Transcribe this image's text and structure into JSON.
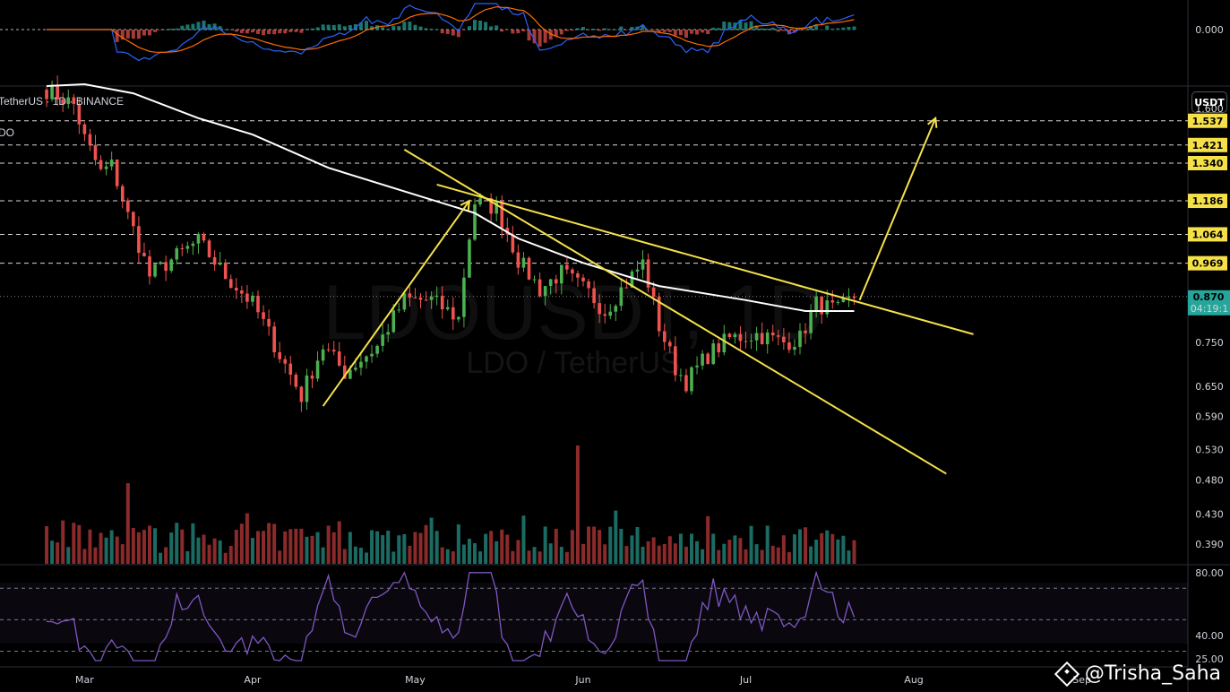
{
  "legend": {
    "symbol_text": "TetherUS · 1D · BINANCE",
    "indicator_text": "DO"
  },
  "watermark": {
    "big": "LDOUSDT, 1D",
    "small": "LDO / TetherUS"
  },
  "currency_badge": "USDT",
  "credit": "@Trisha_Saha",
  "colors": {
    "up": "#26a69a",
    "up_bright": "#4caf50",
    "down": "#ef5350",
    "vol_up": "#1b6b63",
    "vol_down": "#8b2a2a",
    "ma": "#ffffff",
    "trend": "#f5e04a",
    "level": "#ffffff",
    "rsi": "#7e57c2",
    "macd": "#2962ff",
    "signal": "#ff6d00",
    "tag_bg": "#f5e04a",
    "price_tag_bg": "#26a69a"
  },
  "chart_data": {
    "type": "candlestick",
    "symbol": "LDO / TetherUS",
    "interval": "1D",
    "exchange": "BINANCE",
    "x_month_labels": [
      "Mar",
      "Apr",
      "May",
      "Jun",
      "Jul",
      "Aug",
      "Sep"
    ],
    "y_tick_labels": [
      "1.600",
      "0.750",
      "0.650",
      "0.590",
      "0.530",
      "0.480",
      "0.430",
      "0.390"
    ],
    "y_ticks": [
      1.6,
      0.75,
      0.65,
      0.59,
      0.53,
      0.48,
      0.43,
      0.39
    ],
    "ylim": [
      0.365,
      1.72
    ],
    "y_scale": "log",
    "levels": [
      {
        "value": 1.537,
        "label": "1.537"
      },
      {
        "value": 1.421,
        "label": "1.421"
      },
      {
        "value": 1.34,
        "label": "1.340"
      },
      {
        "value": 1.186,
        "label": "1.186"
      },
      {
        "value": 1.064,
        "label": "1.064"
      },
      {
        "value": 0.969,
        "label": "0.969"
      }
    ],
    "last_price": {
      "value": 0.87,
      "label": "0.870",
      "countdown": "04:19:1"
    },
    "date_start": "2023-02-22",
    "date_end": "2023-07-21",
    "start_price": 1.7,
    "pivots": [
      [
        "2023-02-22",
        1.7
      ],
      [
        "2023-02-27",
        1.62
      ],
      [
        "2023-03-01",
        1.45
      ],
      [
        "2023-03-04",
        1.3
      ],
      [
        "2023-03-06",
        1.33
      ],
      [
        "2023-03-09",
        1.13
      ],
      [
        "2023-03-13",
        0.93
      ],
      [
        "2023-03-17",
        0.98
      ],
      [
        "2023-03-22",
        1.04
      ],
      [
        "2023-03-27",
        0.93
      ],
      [
        "2023-04-01",
        0.85
      ],
      [
        "2023-04-06",
        0.72
      ],
      [
        "2023-04-10",
        0.63
      ],
      [
        "2023-04-14",
        0.74
      ],
      [
        "2023-04-18",
        0.68
      ],
      [
        "2023-04-24",
        0.74
      ],
      [
        "2023-04-29",
        0.86
      ],
      [
        "2023-05-04",
        0.86
      ],
      [
        "2023-05-09",
        0.81
      ],
      [
        "2023-05-12",
        1.18
      ],
      [
        "2023-05-16",
        1.16
      ],
      [
        "2023-05-20",
        0.98
      ],
      [
        "2023-05-24",
        0.89
      ],
      [
        "2023-05-28",
        0.94
      ],
      [
        "2023-06-02",
        0.88
      ],
      [
        "2023-06-05",
        0.83
      ],
      [
        "2023-06-09",
        0.91
      ],
      [
        "2023-06-12",
        0.97
      ],
      [
        "2023-06-15",
        0.79
      ],
      [
        "2023-06-18",
        0.69
      ],
      [
        "2023-06-20",
        0.66
      ],
      [
        "2023-06-24",
        0.72
      ],
      [
        "2023-06-28",
        0.76
      ],
      [
        "2023-07-03",
        0.77
      ],
      [
        "2023-07-08",
        0.75
      ],
      [
        "2023-07-11",
        0.76
      ],
      [
        "2023-07-14",
        0.85
      ],
      [
        "2023-07-18",
        0.83
      ],
      [
        "2023-07-21",
        0.87
      ]
    ],
    "ma_200": [
      [
        "2023-02-22",
        1.72
      ],
      [
        "2023-03-01",
        1.73
      ],
      [
        "2023-03-10",
        1.68
      ],
      [
        "2023-03-22",
        1.55
      ],
      [
        "2023-04-01",
        1.47
      ],
      [
        "2023-04-15",
        1.32
      ],
      [
        "2023-05-01",
        1.21
      ],
      [
        "2023-05-12",
        1.14
      ],
      [
        "2023-05-20",
        1.05
      ],
      [
        "2023-06-01",
        0.97
      ],
      [
        "2023-06-15",
        0.9
      ],
      [
        "2023-07-01",
        0.86
      ],
      [
        "2023-07-12",
        0.83
      ],
      [
        "2023-07-21",
        0.83
      ]
    ],
    "trendlines": [
      {
        "name": "rally-line",
        "from": [
          "2023-04-14",
          0.61
        ],
        "to": [
          "2023-05-11",
          1.186
        ]
      },
      {
        "name": "channel-upper",
        "from": [
          "2023-05-05",
          1.25
        ],
        "to": [
          "2023-08-12",
          0.77
        ]
      },
      {
        "name": "channel-lower",
        "from": [
          "2023-04-29",
          1.4
        ],
        "to": [
          "2023-08-07",
          0.49
        ]
      },
      {
        "name": "breakout-target",
        "from": [
          "2023-07-22",
          0.86
        ],
        "to": [
          "2023-08-05",
          1.55
        ]
      }
    ],
    "volume_ylim": [
      0,
      1
    ],
    "rsi": {
      "levels": [
        70,
        50,
        30
      ],
      "y_tick_labels": [
        "80.00",
        "40.00",
        "25.00"
      ],
      "ylim": [
        20,
        85
      ]
    },
    "macd": {
      "zero_label": "0.000"
    }
  }
}
